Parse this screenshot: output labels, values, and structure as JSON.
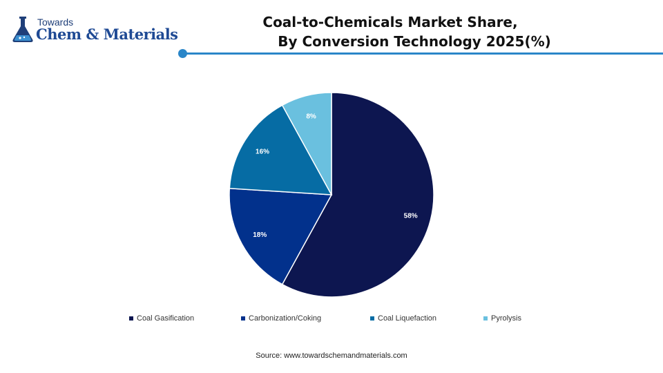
{
  "logo": {
    "top_text": "Towards",
    "main_text": "Chem & Materials",
    "icon": "flask-icon"
  },
  "header": {
    "title_line1": "Coal-to-Chemicals Market Share,",
    "title_line2": "By Conversion Technology 2025(%)"
  },
  "chart_data": {
    "type": "pie",
    "title": "Coal-to-Chemicals Market Share, By Conversion Technology 2025(%)",
    "categories": [
      "Coal Gasification",
      "Carbonization/Coking",
      "Coal Liquefaction",
      "Pyrolysis"
    ],
    "values": [
      58,
      18,
      16,
      8
    ],
    "labels": [
      "58%",
      "18%",
      "16%",
      "8%"
    ],
    "colors": [
      "#0d1650",
      "#02318c",
      "#066ca4",
      "#6ac0df"
    ],
    "start": "12 o'clock",
    "direction": "clockwise",
    "legend_position": "bottom"
  },
  "accent_color": "#2a86c8",
  "source": "Source: www.towardschemandmaterials.com"
}
